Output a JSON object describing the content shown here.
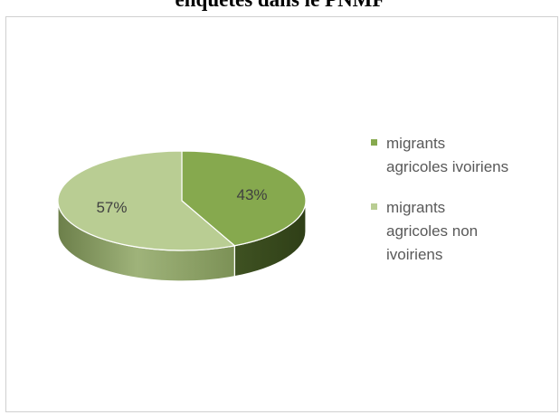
{
  "chart_data": {
    "type": "pie",
    "title": "enquêtés dans le PNMF",
    "three_d": true,
    "categories": [
      "migrants agricoles ivoiriens",
      "migrants agricoles non ivoiriens"
    ],
    "values": [
      43,
      57
    ],
    "labels": [
      "43%",
      "57%"
    ],
    "colors": [
      "#86a94e",
      "#b9cd93"
    ],
    "legend_position": "right",
    "legend": [
      {
        "lines": [
          "migrants",
          "agricoles ivoiriens"
        ],
        "color": "#86a94e"
      },
      {
        "lines": [
          "migrants",
          "agricoles non",
          "ivoiriens"
        ],
        "color": "#b9cd93"
      }
    ]
  }
}
